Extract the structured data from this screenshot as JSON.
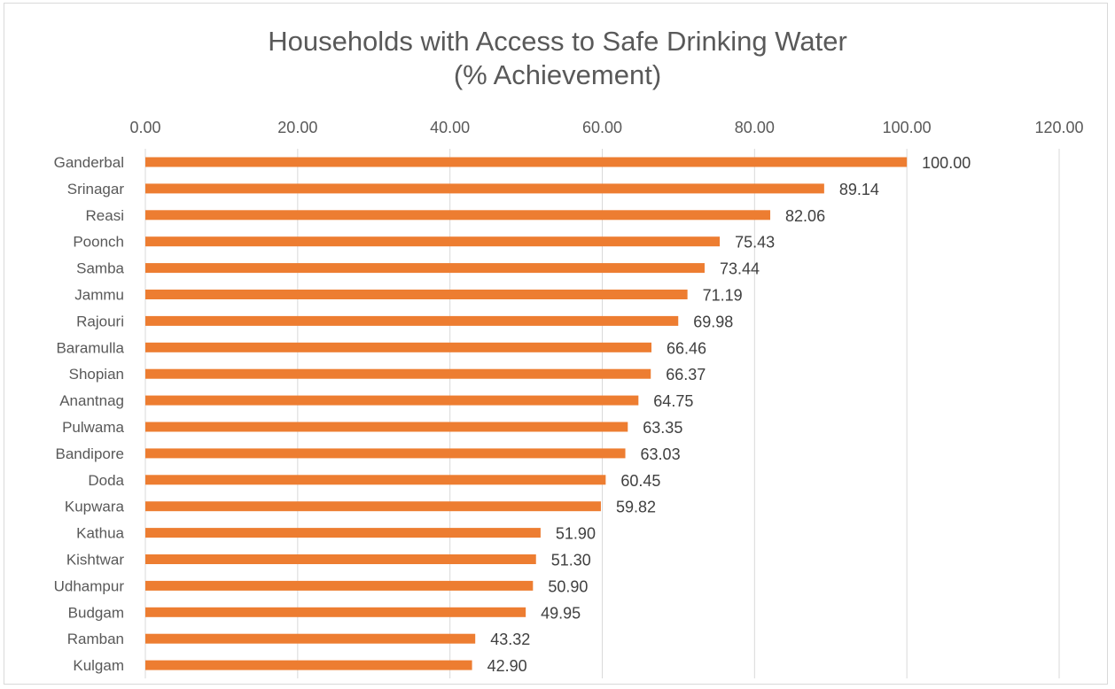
{
  "chart_data": {
    "type": "bar",
    "orientation": "horizontal",
    "title": "Households with Access to Safe Drinking Water",
    "subtitle": "(% Achievement)",
    "categories": [
      "Ganderbal",
      "Srinagar",
      "Reasi",
      "Poonch",
      "Samba",
      "Jammu",
      "Rajouri",
      "Baramulla",
      "Shopian",
      "Anantnag",
      "Pulwama",
      "Bandipore",
      "Doda",
      "Kupwara",
      "Kathua",
      "Kishtwar",
      "Udhampur",
      "Budgam",
      "Ramban",
      "Kulgam"
    ],
    "values": [
      100.0,
      89.14,
      82.06,
      75.43,
      73.44,
      71.19,
      69.98,
      66.46,
      66.37,
      64.75,
      63.35,
      63.03,
      60.45,
      59.82,
      51.9,
      51.3,
      50.9,
      49.95,
      43.32,
      42.9
    ],
    "data_labels": [
      "100.00",
      "89.14",
      "82.06",
      "75.43",
      "73.44",
      "71.19",
      "69.98",
      "66.46",
      "66.37",
      "64.75",
      "63.35",
      "63.03",
      "60.45",
      "59.82",
      "51.90",
      "51.30",
      "50.90",
      "49.95",
      "43.32",
      "42.90"
    ],
    "x_ticks": [
      "0.00",
      "20.00",
      "40.00",
      "60.00",
      "80.00",
      "100.00",
      "120.00"
    ],
    "xlim": [
      0,
      120
    ],
    "axis_position": "top",
    "grid": true,
    "legend": "none",
    "bar_color": "#ed7d31",
    "grid_color": "#d9d9d9"
  }
}
